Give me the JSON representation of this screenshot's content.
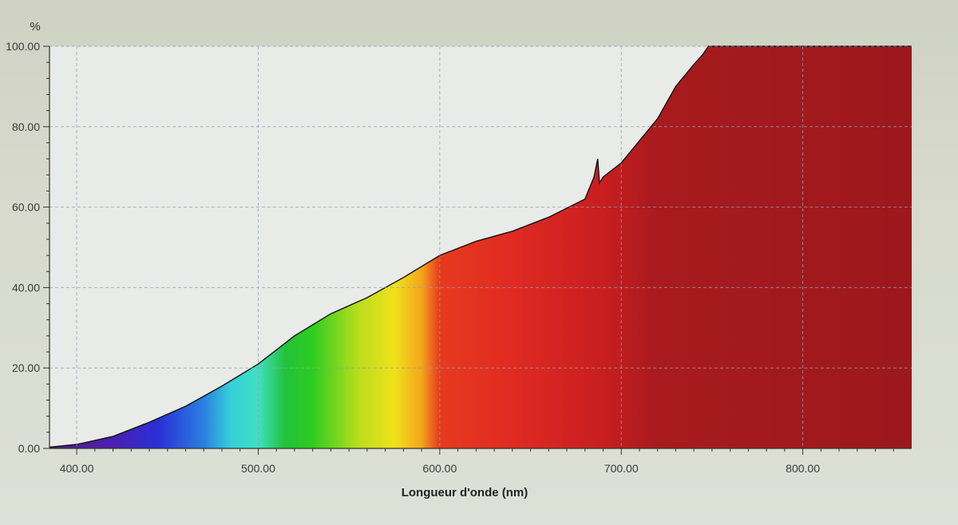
{
  "chart_data": {
    "type": "area",
    "ylabel": "%",
    "xlabel": "Longueur d'onde (nm)",
    "xlim": [
      385,
      860
    ],
    "ylim": [
      0,
      100
    ],
    "x_ticks": [
      "400.00",
      "500.00",
      "600.00",
      "700.00",
      "800.00"
    ],
    "y_ticks": [
      "0.00",
      "20.00",
      "40.00",
      "60.00",
      "80.00",
      "100.00"
    ],
    "grid": true,
    "fill": "visible-spectrum gradient under curve",
    "series": [
      {
        "x": [
          385,
          400,
          420,
          440,
          460,
          480,
          500,
          520,
          540,
          560,
          580,
          600,
          620,
          640,
          660,
          680,
          685,
          687,
          688,
          690,
          700,
          720,
          730,
          740,
          745,
          748,
          860
        ],
        "y": [
          0.3,
          1.0,
          3.0,
          6.5,
          10.5,
          15.5,
          21.0,
          28.0,
          33.5,
          37.5,
          42.5,
          48.0,
          51.5,
          54.0,
          57.5,
          62.0,
          67.5,
          72.0,
          66.0,
          67.5,
          71.0,
          82.0,
          90.0,
          95.5,
          98.0,
          100,
          100
        ]
      }
    ]
  },
  "colors": {
    "plot_background": "#e9ebe8",
    "grid_line": "#8fa0b8",
    "curve": "#111111"
  }
}
